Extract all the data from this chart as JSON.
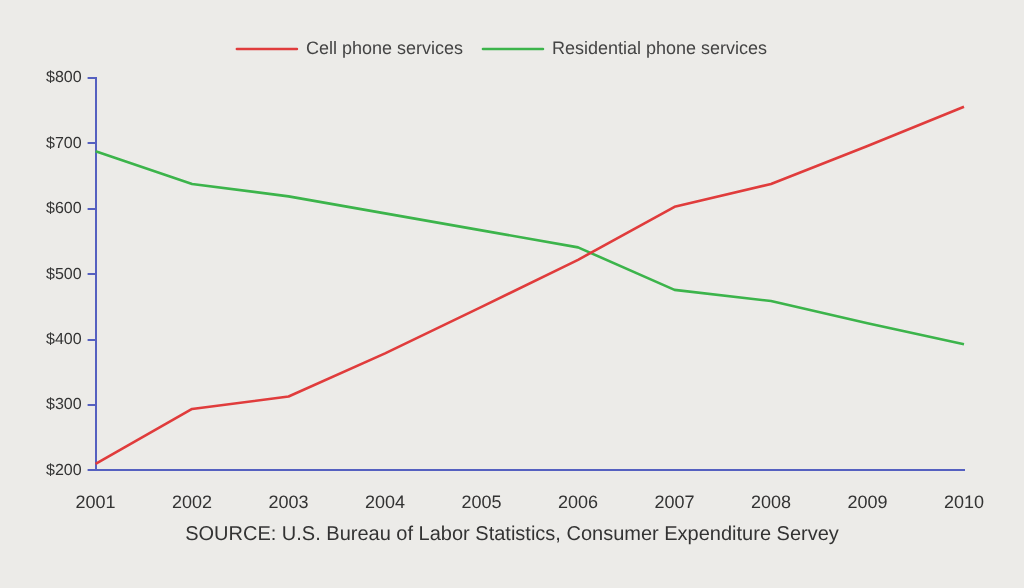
{
  "chart_data": {
    "type": "line",
    "categories": [
      "2001",
      "2002",
      "2003",
      "2004",
      "2005",
      "2006",
      "2007",
      "2008",
      "2009",
      "2010"
    ],
    "series": [
      {
        "name": "Cell phone services",
        "color": "#e03c3c",
        "values": [
          210,
          294,
          313,
          379,
          450,
          522,
          603,
          638,
          696,
          756
        ]
      },
      {
        "name": "Residential phone services",
        "color": "#3cb44b",
        "values": [
          688,
          638,
          619,
          593,
          567,
          541,
          476,
          459,
          425,
          393
        ]
      }
    ],
    "ylim": [
      200,
      800
    ],
    "yticks": [
      {
        "value": 200,
        "label": "$200"
      },
      {
        "value": 300,
        "label": "$300"
      },
      {
        "value": 400,
        "label": "$400"
      },
      {
        "value": 500,
        "label": "$500"
      },
      {
        "value": 600,
        "label": "$600"
      },
      {
        "value": 700,
        "label": "$700"
      },
      {
        "value": 800,
        "label": "$800"
      }
    ],
    "grid": false,
    "legend": "top",
    "marker": "none",
    "line_style": "solid",
    "annotations": [
      "SOURCE: U.S. Bureau of Labor Statistics, Consumer Expenditure Servey"
    ]
  }
}
